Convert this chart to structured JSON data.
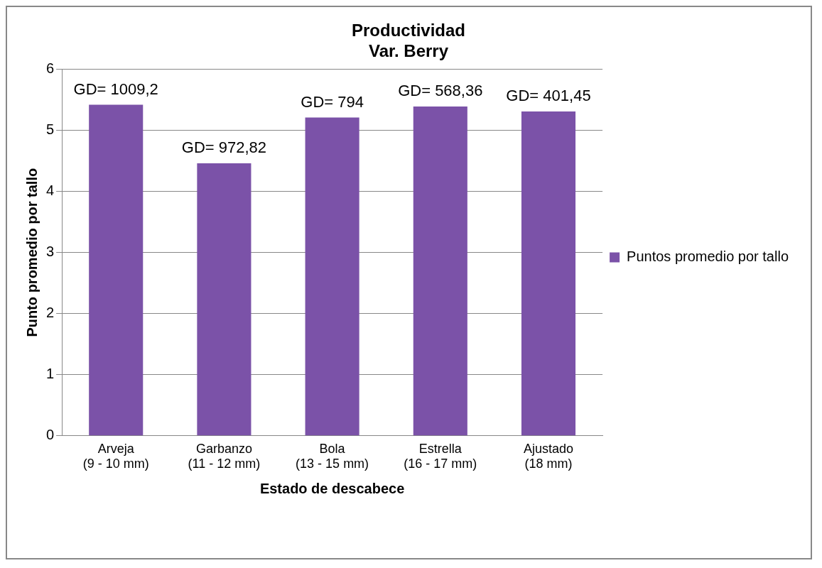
{
  "chart_data": {
    "type": "bar",
    "title": "Productividad\nVar. Berry",
    "xlabel": "Estado de descabece",
    "ylabel": "Punto promedio por tallo",
    "categories": [
      "Arveja\n(9 - 10 mm)",
      "Garbanzo\n(11 - 12 mm)",
      "Bola\n(13 - 15 mm)",
      "Estrella\n(16 - 17 mm)",
      "Ajustado\n(18 mm)"
    ],
    "series": [
      {
        "name": "Puntos promedio por tallo",
        "color": "#7b52a8",
        "values": [
          5.42,
          4.46,
          5.21,
          5.39,
          5.31
        ]
      }
    ],
    "annotations": [
      {
        "text": "GD= 1009,2",
        "x": "Arveja\n(9 - 10 mm)",
        "y": 5.42
      },
      {
        "text": "GD= 972,82",
        "x": "Garbanzo\n(11 - 12 mm)",
        "y": 4.46
      },
      {
        "text": "GD= 794",
        "x": "Bola\n(13 - 15 mm)",
        "y": 5.21
      },
      {
        "text": "GD= 568,36",
        "x": "Estrella\n(16 - 17 mm)",
        "y": 5.39
      },
      {
        "text": "GD= 401,45",
        "x": "Ajustado\n(18 mm)",
        "y": 5.31
      }
    ],
    "ylim": [
      0,
      6
    ],
    "yticks": [
      0,
      1,
      2,
      3,
      4,
      5,
      6
    ],
    "grid": "y",
    "legend": "right"
  }
}
